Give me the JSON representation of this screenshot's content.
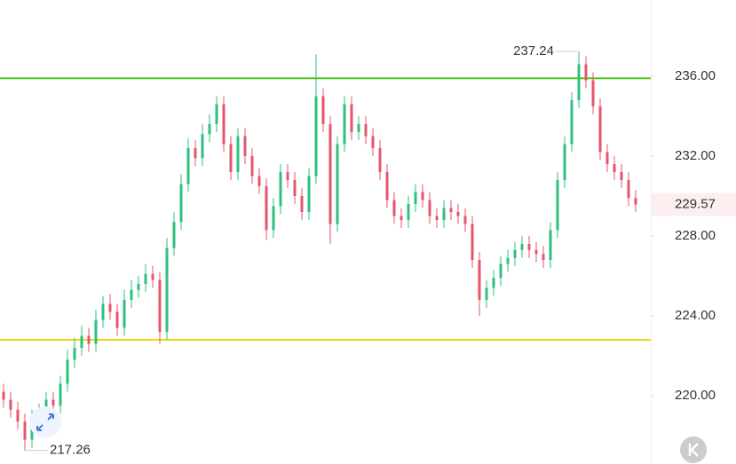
{
  "chart_data": {
    "type": "candlestick",
    "ylim": [
      216.58,
      239.82
    ],
    "yticks": [
      {
        "value": 220,
        "label": "220.00"
      },
      {
        "value": 224,
        "label": "224.00"
      },
      {
        "value": 228,
        "label": "228.00"
      },
      {
        "value": 232,
        "label": "232.00"
      },
      {
        "value": 236,
        "label": "236.00"
      }
    ],
    "up_color": "#2fbf7f",
    "down_color": "#e5566a",
    "open": [
      220.2,
      219.8,
      219.3,
      218.7,
      217.8,
      218.9,
      219.2,
      219.8,
      219.5,
      220.6,
      221.8,
      222.4,
      223.0,
      222.6,
      223.8,
      224.6,
      224.2,
      223.4,
      224.8,
      225.3,
      225.6,
      226.1,
      225.8,
      223.2,
      227.4,
      228.7,
      230.6,
      232.4,
      231.9,
      233.1,
      233.6,
      234.6,
      232.6,
      231.2,
      233.0,
      232.0,
      231.0,
      230.5,
      228.3,
      229.5,
      231.2,
      230.8,
      230.0,
      229.2,
      231.0,
      235.0,
      233.6,
      228.6,
      232.6,
      234.6,
      233.2,
      233.6,
      233.0,
      232.4,
      231.2,
      229.8,
      229.0,
      228.8,
      229.6,
      230.2,
      229.8,
      229.0,
      228.8,
      229.4,
      229.2,
      229.0,
      228.6,
      226.8,
      224.8,
      225.4,
      225.9,
      226.6,
      226.9,
      227.3,
      227.6,
      227.3,
      227.1,
      226.8,
      228.3,
      230.8,
      232.6,
      234.8,
      236.6,
      235.8,
      234.5,
      232.2,
      231.6,
      231.2,
      230.8,
      229.9
    ],
    "high": [
      220.6,
      220.2,
      219.7,
      219.1,
      219.3,
      219.6,
      220.2,
      220.2,
      221.0,
      222.3,
      222.9,
      223.5,
      223.4,
      224.3,
      225.0,
      225.1,
      224.6,
      225.3,
      225.8,
      226.0,
      226.6,
      226.5,
      226.2,
      227.9,
      229.2,
      231.1,
      232.9,
      232.8,
      233.6,
      234.1,
      235.0,
      235.0,
      233.0,
      233.4,
      233.4,
      232.4,
      231.4,
      230.9,
      229.9,
      231.6,
      231.6,
      231.2,
      230.4,
      231.4,
      237.1,
      235.4,
      234.0,
      233.0,
      235.0,
      235.0,
      234.0,
      234.0,
      233.4,
      232.8,
      231.6,
      230.2,
      229.4,
      230.0,
      230.6,
      230.6,
      230.2,
      229.4,
      229.8,
      229.8,
      229.6,
      229.4,
      229.0,
      227.2,
      225.8,
      226.3,
      227.0,
      227.3,
      227.7,
      228.0,
      228.0,
      227.7,
      227.5,
      228.7,
      231.2,
      233.0,
      235.2,
      237.24,
      237.0,
      236.2,
      234.9,
      232.6,
      232.0,
      231.6,
      231.2,
      230.3
    ],
    "low": [
      219.4,
      218.9,
      218.3,
      217.26,
      217.4,
      218.5,
      218.8,
      219.1,
      219.1,
      220.2,
      221.4,
      222.0,
      222.2,
      222.2,
      223.4,
      223.8,
      223.0,
      223.0,
      224.4,
      224.9,
      225.2,
      225.4,
      222.6,
      222.8,
      227.0,
      228.3,
      230.2,
      231.5,
      231.5,
      232.7,
      233.2,
      232.2,
      230.8,
      230.8,
      231.6,
      230.6,
      230.1,
      227.8,
      227.9,
      229.1,
      230.4,
      229.6,
      228.8,
      228.8,
      230.6,
      233.2,
      227.6,
      228.2,
      232.2,
      232.8,
      232.8,
      232.6,
      232.0,
      230.8,
      229.4,
      228.6,
      228.4,
      228.4,
      229.2,
      229.4,
      228.6,
      228.4,
      228.4,
      228.8,
      228.6,
      228.2,
      226.4,
      224.0,
      224.4,
      225.0,
      225.5,
      226.2,
      226.5,
      226.9,
      226.9,
      226.7,
      226.4,
      226.4,
      227.9,
      230.4,
      232.2,
      234.4,
      235.4,
      234.1,
      231.8,
      231.2,
      230.8,
      230.4,
      229.5,
      229.2
    ],
    "close": [
      219.8,
      219.3,
      218.7,
      217.8,
      218.9,
      219.2,
      219.8,
      219.5,
      220.6,
      221.8,
      222.4,
      223.0,
      222.6,
      223.8,
      224.6,
      224.2,
      223.4,
      224.8,
      225.3,
      225.6,
      226.1,
      225.8,
      223.2,
      227.4,
      228.7,
      230.6,
      232.4,
      231.9,
      233.1,
      233.6,
      234.6,
      232.6,
      231.2,
      233.0,
      232.0,
      231.0,
      230.5,
      228.3,
      229.5,
      231.2,
      230.8,
      230.0,
      229.2,
      231.0,
      235.0,
      233.6,
      228.6,
      232.6,
      234.6,
      233.2,
      233.6,
      233.0,
      232.4,
      231.2,
      229.8,
      229.0,
      228.8,
      229.6,
      230.2,
      229.8,
      229.0,
      228.8,
      229.4,
      229.2,
      229.0,
      228.6,
      226.8,
      224.8,
      225.4,
      225.9,
      226.6,
      226.9,
      227.3,
      227.6,
      227.3,
      227.1,
      226.8,
      228.3,
      230.8,
      232.6,
      234.8,
      236.6,
      235.8,
      234.5,
      232.2,
      231.6,
      231.2,
      230.8,
      229.9,
      229.57
    ],
    "levels": [
      {
        "value": 235.9,
        "color": "#52c41a"
      },
      {
        "value": 222.8,
        "color": "#f2d70f"
      }
    ]
  }
}
